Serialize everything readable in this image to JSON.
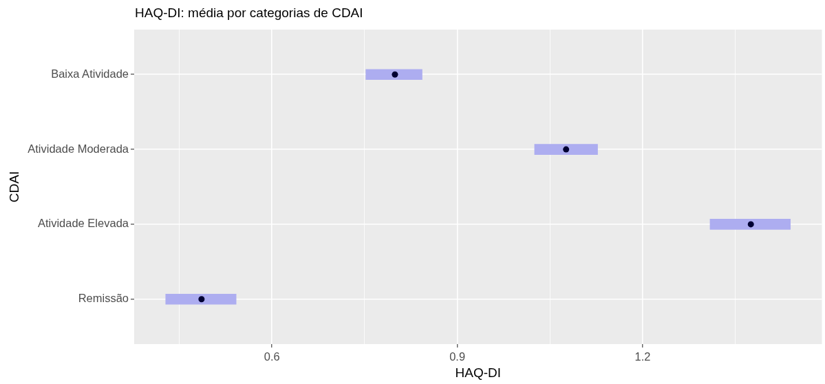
{
  "chart_data": {
    "type": "bar",
    "orientation": "horizontal",
    "title": "HAQ-DI: média por categorias de CDAI",
    "xlabel": "HAQ-DI",
    "ylabel": "CDAI",
    "categories": [
      "Baixa Atividade",
      "Atividade Moderada",
      "Atividade Elevada",
      "Remissão"
    ],
    "series": [
      {
        "type": "bar",
        "color": "#adadf0",
        "base": [
          0.752,
          1.025,
          1.309,
          0.428
        ],
        "values": [
          0.091,
          0.102,
          0.13,
          0.114
        ]
      },
      {
        "type": "scatter",
        "color": "#000033",
        "marker": "circle",
        "x": [
          "Baixa Atividade",
          "Atividade Moderada",
          "Atividade Elevada",
          "Remissão"
        ],
        "values": [
          0.799,
          1.076,
          1.375,
          0.486
        ]
      }
    ],
    "xlim": [
      0.377,
      1.49
    ],
    "xticks": [
      {
        "value": 0.45,
        "label": null
      },
      0.6,
      {
        "value": 0.75,
        "label": null
      },
      0.9,
      {
        "value": 1.05,
        "label": null
      },
      1.2,
      {
        "value": 1.35,
        "label": null
      }
    ],
    "grid": true
  }
}
